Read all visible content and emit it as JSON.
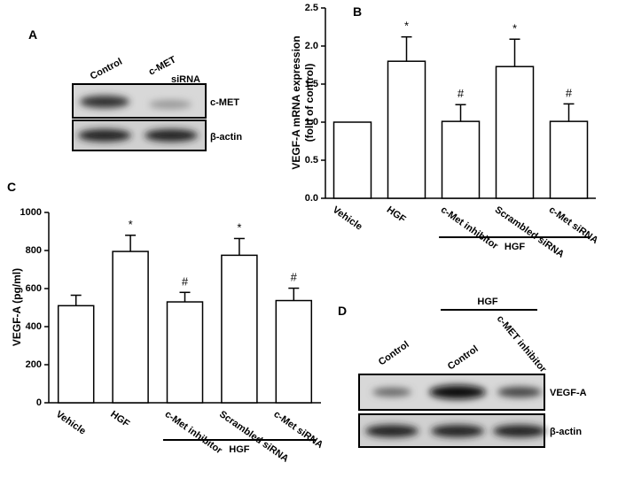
{
  "chart_data": [
    {
      "type": "bar",
      "panel": "B",
      "y_label": [
        "VEGF-A mRNA expression",
        "(fold of control)"
      ],
      "categories": [
        "Vehicle",
        "HGF",
        "c-Met inhibitor",
        "Scrambled siRNA",
        "c-Met siRNA"
      ],
      "values": [
        1.0,
        1.8,
        1.01,
        1.73,
        1.01
      ],
      "errors": [
        0,
        0.32,
        0.22,
        0.36,
        0.23
      ],
      "annotations": [
        null,
        "*",
        "#",
        "*",
        "#"
      ],
      "group_label": "HGF",
      "color": "#ffffff",
      "ylim": [
        0,
        2.5
      ],
      "yticks": [
        {
          "value": 0,
          "label": "0.0"
        },
        {
          "value": 0.5,
          "label": "0.5"
        },
        {
          "value": 1,
          "label": "1.0"
        },
        {
          "value": 1.5,
          "label": "1.5"
        },
        {
          "value": 2,
          "label": "2.0"
        },
        {
          "value": 2.5,
          "label": "2.5"
        }
      ]
    },
    {
      "type": "bar",
      "panel": "C",
      "y_label": [
        "VEGF-A (pg/ml)"
      ],
      "categories": [
        "Vehicle",
        "HGF",
        "c-Met inhibitor",
        "Scrambled siRNA",
        "c-Met siRNA"
      ],
      "values": [
        510,
        795,
        530,
        775,
        537
      ],
      "errors": [
        55,
        85,
        50,
        88,
        65
      ],
      "annotations": [
        null,
        "*",
        "#",
        "*",
        "#"
      ],
      "group_label": "HGF",
      "color": "#ffffff",
      "ylim": [
        0,
        1000
      ],
      "yticks": [
        0,
        200,
        400,
        600,
        800,
        1000
      ]
    }
  ],
  "blot_a": {
    "label": "A",
    "lanes": [
      "Control",
      "c-MET"
    ],
    "lane_note": "siRNA",
    "rows": [
      "c-MET",
      "β-actin"
    ]
  },
  "blot_d": {
    "label": "D",
    "group_label": "HGF",
    "lanes": [
      "Control",
      "Control",
      "c-MET inhibitor"
    ],
    "rows": [
      "VEGF-A",
      "β-actin"
    ]
  }
}
